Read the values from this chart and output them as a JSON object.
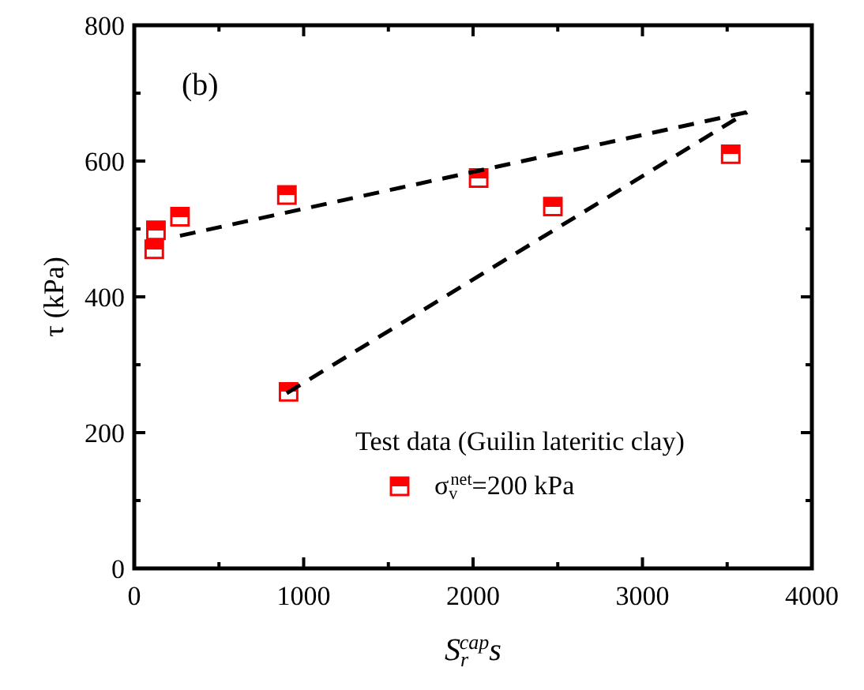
{
  "chart_data": {
    "type": "scatter",
    "xlabel": "S$_{r}$$^{cap}$s",
    "ylabel": "τ (kPa)",
    "annotations": [
      "(b)"
    ],
    "legend_title": "Test data (Guilin lateritic clay)",
    "legend": "bottom right",
    "marker": "square",
    "xlim": [
      0,
      4000
    ],
    "ylim": [
      0,
      800
    ],
    "xticks": [
      0,
      {
        "value": 500,
        "label": null
      },
      1000,
      {
        "value": 1500,
        "label": null
      },
      2000,
      {
        "value": 2500,
        "label": null
      },
      3000,
      {
        "value": 3500,
        "label": null
      },
      4000
    ],
    "yticks": [
      0,
      {
        "value": 100,
        "label": null
      },
      200,
      {
        "value": 300,
        "label": null
      },
      400,
      {
        "value": 500,
        "label": null
      },
      600,
      {
        "value": 700,
        "label": null
      },
      800
    ],
    "series": [
      {
        "name": "σ$_{v}$$^{net}$=200 kPa",
        "color": "#ff0000",
        "x": [
          118,
          128,
          270,
          901,
          911,
          2033,
          2471,
          3521
        ],
        "values": [
          470,
          498,
          518,
          550,
          260,
          575,
          533,
          610
        ]
      },
      {
        "type": "line",
        "color": "#000000",
        "line_style": "dashed",
        "marker": "none",
        "x": [
          270,
          3618
        ],
        "values": [
          490,
          672
        ]
      },
      {
        "type": "line",
        "color": "#000000",
        "line_style": "dashed",
        "marker": "none",
        "x": [
          900,
          3618
        ],
        "values": [
          258,
          672
        ]
      }
    ]
  }
}
